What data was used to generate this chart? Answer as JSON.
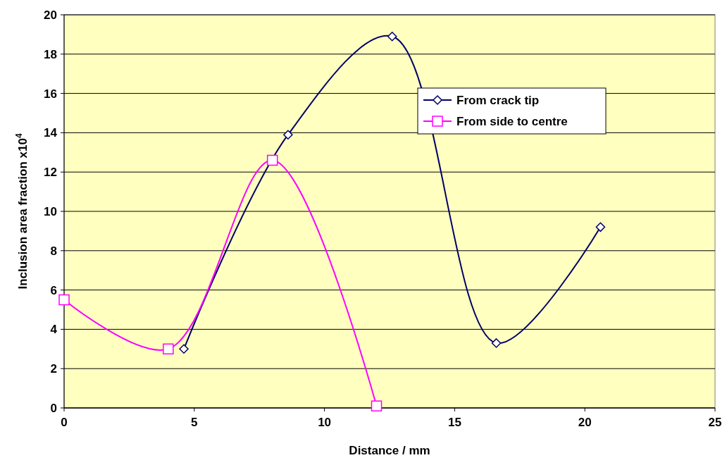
{
  "chart_data": {
    "type": "line",
    "xlabel": "Distance / mm",
    "ylabel": "Inclusion area fraction x10$^{4}$",
    "xlim": [
      0,
      25
    ],
    "xticks": [
      0,
      5,
      10,
      15,
      20,
      25
    ],
    "ylim": [
      0,
      20
    ],
    "yticks": [
      0,
      2,
      4,
      6,
      8,
      10,
      12,
      14,
      16,
      18,
      20
    ],
    "grid": "y",
    "legend": "right",
    "series": [
      {
        "name": "From crack tip",
        "color": "#000066",
        "marker": "diamond",
        "x": [
          4.6,
          8.6,
          12.6,
          16.6,
          20.6
        ],
        "values": [
          3.0,
          13.9,
          18.9,
          3.3,
          9.2
        ]
      },
      {
        "name": "From side to centre",
        "color": "#ff00ff",
        "marker": "square",
        "x": [
          0,
          4,
          8,
          12
        ],
        "values": [
          5.5,
          3.0,
          12.6,
          0.1
        ]
      }
    ]
  }
}
